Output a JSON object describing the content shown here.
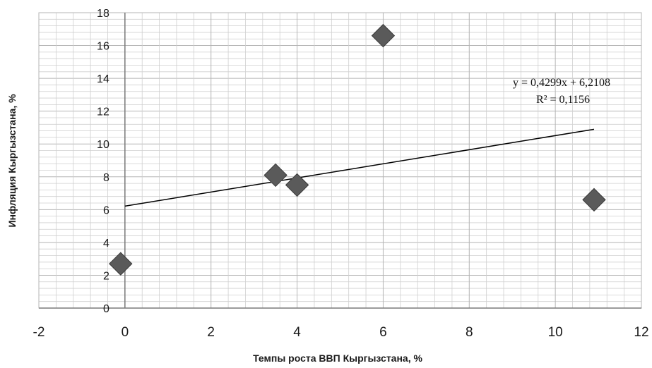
{
  "chart_data": {
    "type": "scatter",
    "xlabel": "Темпы роста ВВП Кыргызстана, %",
    "ylabel": "Инфляция Кыргызстана, %",
    "xlim": [
      -2,
      12
    ],
    "ylim": [
      0,
      18
    ],
    "x_ticks": [
      "-2",
      "0",
      "2",
      "4",
      "6",
      "8",
      "10",
      "12"
    ],
    "y_ticks": [
      "0",
      "2",
      "4",
      "6",
      "8",
      "10",
      "12",
      "14",
      "16",
      "18"
    ],
    "grid": true,
    "points": [
      {
        "x": -0.1,
        "y": 2.7
      },
      {
        "x": 3.5,
        "y": 8.1
      },
      {
        "x": 4.0,
        "y": 7.5
      },
      {
        "x": 6.0,
        "y": 16.6
      },
      {
        "x": 10.9,
        "y": 6.6
      }
    ],
    "trendline": {
      "type": "linear",
      "slope": 0.4299,
      "intercept": 6.2108,
      "x_range": [
        0,
        10.9
      ],
      "equation": "y = 0,4299x + 6,2108",
      "r_squared": "R² = 0,1156"
    },
    "marker_color": "#5a5a5a",
    "line_color": "#000000",
    "grid_color": "#b5b5b5",
    "minor_grid_color": "#cfcfcf",
    "zero_axis_color": "#7a7a7a"
  }
}
